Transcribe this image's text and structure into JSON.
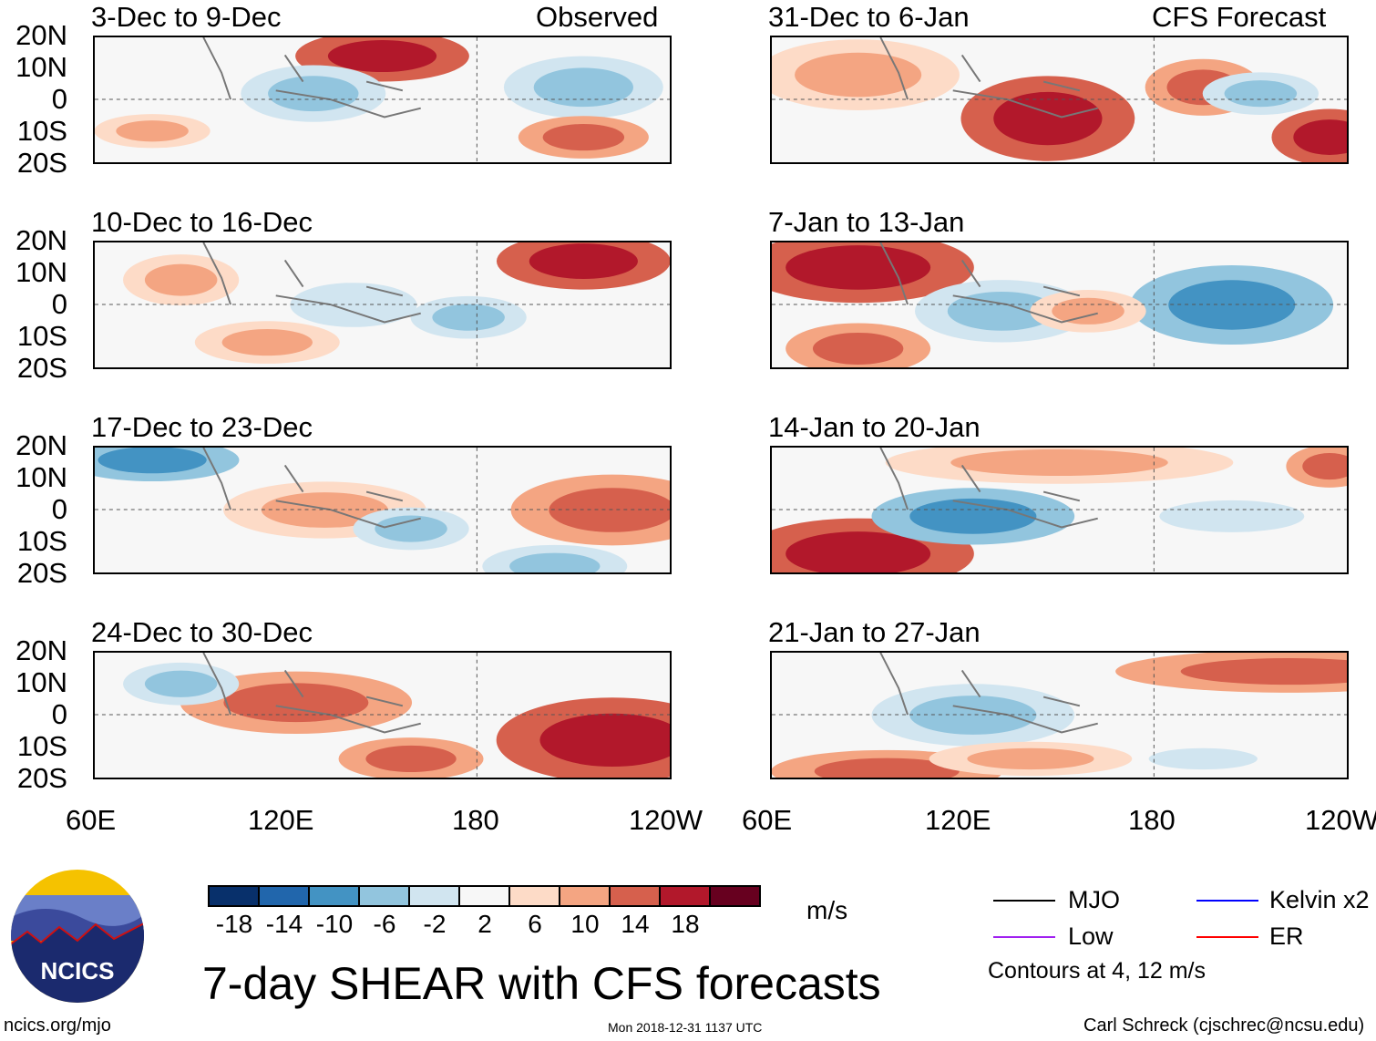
{
  "column_headers": {
    "left": "Observed",
    "right": "CFS Forecast"
  },
  "panels": {
    "left": [
      "3-Dec to 9-Dec",
      "10-Dec to 16-Dec",
      "17-Dec to 23-Dec",
      "24-Dec to 30-Dec"
    ],
    "right": [
      "31-Dec to 6-Jan",
      "7-Jan to 13-Jan",
      "14-Jan to 20-Jan",
      "21-Jan to 27-Jan"
    ]
  },
  "lat_labels": [
    "20N",
    "10N",
    "0",
    "10S",
    "20S"
  ],
  "lon_labels": [
    "60E",
    "120E",
    "180",
    "120W"
  ],
  "colorbar": {
    "colors": [
      "#08306b",
      "#2166ac",
      "#4393c3",
      "#92c5de",
      "#d1e5f0",
      "#f7f7f7",
      "#fddbc7",
      "#f4a582",
      "#d6604d",
      "#b2182b",
      "#67001f"
    ],
    "labels": [
      "-18",
      "-14",
      "-10",
      "-6",
      "-2",
      "2",
      "6",
      "10",
      "14",
      "18"
    ],
    "units": "m/s"
  },
  "title": "7-day SHEAR with CFS forecasts",
  "legend": {
    "items": [
      {
        "label": "MJO",
        "color": "#000000"
      },
      {
        "label": "Kelvin x2",
        "color": "#0000ff"
      },
      {
        "label": "Low",
        "color": "#a020f0"
      },
      {
        "label": "ER",
        "color": "#ff0000"
      }
    ],
    "note": "Contours at 4, 12 m/s"
  },
  "logo_text": "NCICS",
  "footer": {
    "url": "ncics.org/mjo",
    "timestamp": "Mon 2018-12-31 1137 UTC",
    "author": "Carl Schreck (cjschrec@ncsu.edu)"
  }
}
